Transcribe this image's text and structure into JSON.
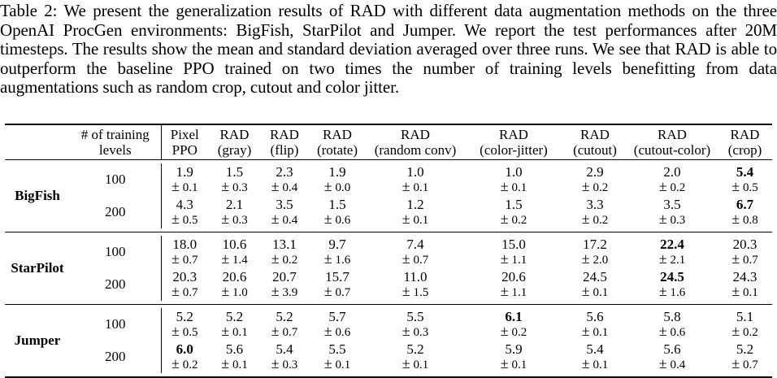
{
  "caption": "Table 2: We present the generalization results of RAD with different data augmentation methods on the three OpenAI ProcGen environments: BigFish, StarPilot and Jumper. We report the test performances after 20M timesteps. The results show the mean and standard deviation averaged over three runs. We see that RAD is able to outperform the baseline PPO trained on two times the number of training levels benefitting from data augmentations such as random crop, cutout and color jitter.",
  "header": {
    "levels_line1": "# of training",
    "levels_line2": "levels",
    "methods": [
      {
        "l1": "Pixel",
        "l2": "PPO"
      },
      {
        "l1": "RAD",
        "l2": "(gray)"
      },
      {
        "l1": "RAD",
        "l2": "(flip)"
      },
      {
        "l1": "RAD",
        "l2": "(rotate)"
      },
      {
        "l1": "RAD",
        "l2": "(random conv)"
      },
      {
        "l1": "RAD",
        "l2": "(color-jitter)"
      },
      {
        "l1": "RAD",
        "l2": "(cutout)"
      },
      {
        "l1": "RAD",
        "l2": "(cutout-color)"
      },
      {
        "l1": "RAD",
        "l2": "(crop)"
      }
    ]
  },
  "pm": "±",
  "groups": [
    {
      "env": "BigFish",
      "rows": [
        {
          "levels": "100",
          "mean": [
            "1.9",
            "1.5",
            "2.3",
            "1.9",
            "1.0",
            "1.0",
            "2.9",
            "2.0",
            "5.4"
          ],
          "std": [
            "0.1",
            "0.3",
            "0.4",
            "0.0",
            "0.1",
            "0.1",
            "0.2",
            "0.2",
            "0.5"
          ],
          "bold": [
            8
          ]
        },
        {
          "levels": "200",
          "mean": [
            "4.3",
            "2.1",
            "3.5",
            "1.5",
            "1.2",
            "1.5",
            "3.3",
            "3.5",
            "6.7"
          ],
          "std": [
            "0.5",
            "0.3",
            "0.4",
            "0.6",
            "0.1",
            "0.2",
            "0.2",
            "0.3",
            "0.8"
          ],
          "bold": [
            8
          ]
        }
      ]
    },
    {
      "env": "StarPilot",
      "rows": [
        {
          "levels": "100",
          "mean": [
            "18.0",
            "10.6",
            "13.1",
            "9.7",
            "7.4",
            "15.0",
            "17.2",
            "22.4",
            "20.3"
          ],
          "std": [
            "0.7",
            "1.4",
            "0.2",
            "1.6",
            "0.7",
            "1.1",
            "2.0",
            "2.1",
            "0.7"
          ],
          "bold": [
            7
          ]
        },
        {
          "levels": "200",
          "mean": [
            "20.3",
            "20.6",
            "20.7",
            "15.7",
            "11.0",
            "20.6",
            "24.5",
            "24.5",
            "24.3"
          ],
          "std": [
            "0.7",
            "1.0",
            "3.9",
            "0.7",
            "1.5",
            "1.1",
            "0.1",
            "1.6",
            "0.1"
          ],
          "bold": [
            7
          ]
        }
      ]
    },
    {
      "env": "Jumper",
      "rows": [
        {
          "levels": "100",
          "mean": [
            "5.2",
            "5.2",
            "5.2",
            "5.7",
            "5.5",
            "6.1",
            "5.6",
            "5.8",
            "5.1"
          ],
          "std": [
            "0.5",
            "0.1",
            "0.7",
            "0.6",
            "0.3",
            "0.2",
            "0.1",
            "0.6",
            "0.2"
          ],
          "bold": [
            5
          ]
        },
        {
          "levels": "200",
          "mean": [
            "6.0",
            "5.6",
            "5.4",
            "5.5",
            "5.2",
            "5.9",
            "5.4",
            "5.6",
            "5.2"
          ],
          "std": [
            "0.2",
            "0.1",
            "0.3",
            "0.1",
            "0.1",
            "0.1",
            "0.1",
            "0.4",
            "0.7"
          ],
          "bold": [
            0
          ]
        }
      ]
    }
  ]
}
